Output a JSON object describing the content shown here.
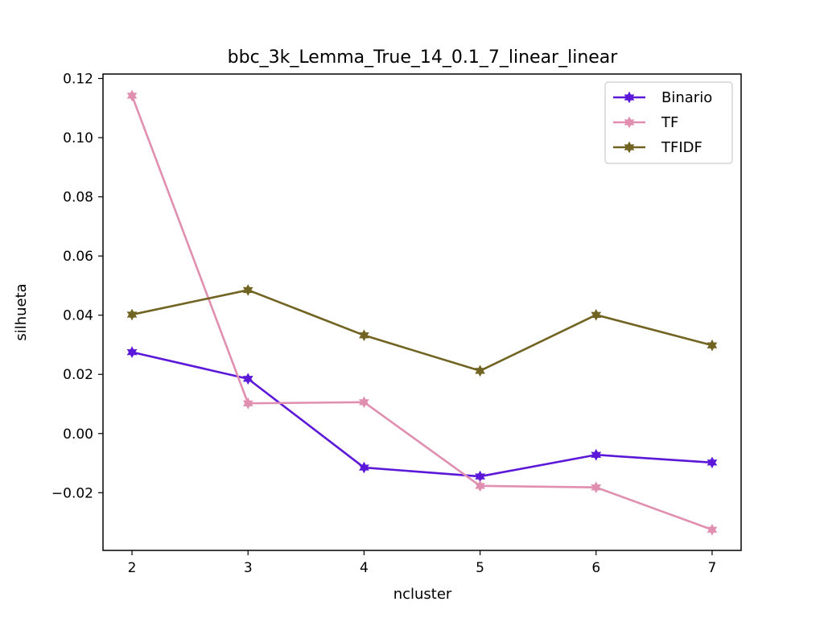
{
  "chart_data": {
    "type": "line",
    "title": "bbc_3k_Lemma_True_14_0.1_7_linear_linear",
    "xlabel": "ncluster",
    "ylabel": "silhueta",
    "x": [
      2,
      3,
      4,
      5,
      6,
      7
    ],
    "xlim": [
      1.75,
      7.25
    ],
    "ylim": [
      -0.0395,
      0.1215
    ],
    "x_ticks": [
      2,
      3,
      4,
      5,
      6,
      7
    ],
    "y_ticks": [
      -0.02,
      0.0,
      0.02,
      0.04,
      0.06,
      0.08,
      0.1,
      0.12
    ],
    "y_tick_labels": [
      "−0.02",
      "0.00",
      "0.02",
      "0.04",
      "0.06",
      "0.08",
      "0.10",
      "0.12"
    ],
    "grid": false,
    "legend_position": "top-right",
    "series": [
      {
        "name": "Binario",
        "color": "#5b18d8",
        "marker": "star",
        "values": [
          0.0275,
          0.0185,
          -0.0115,
          -0.0145,
          -0.0072,
          -0.0098
        ]
      },
      {
        "name": "TF",
        "color": "#e08fb0",
        "marker": "star",
        "values": [
          0.1142,
          0.0102,
          0.0106,
          -0.0177,
          -0.0182,
          -0.0325
        ]
      },
      {
        "name": "TFIDF",
        "color": "#716322",
        "marker": "star",
        "values": [
          0.0402,
          0.0485,
          0.0332,
          0.0212,
          0.0401,
          0.0298
        ]
      }
    ]
  }
}
